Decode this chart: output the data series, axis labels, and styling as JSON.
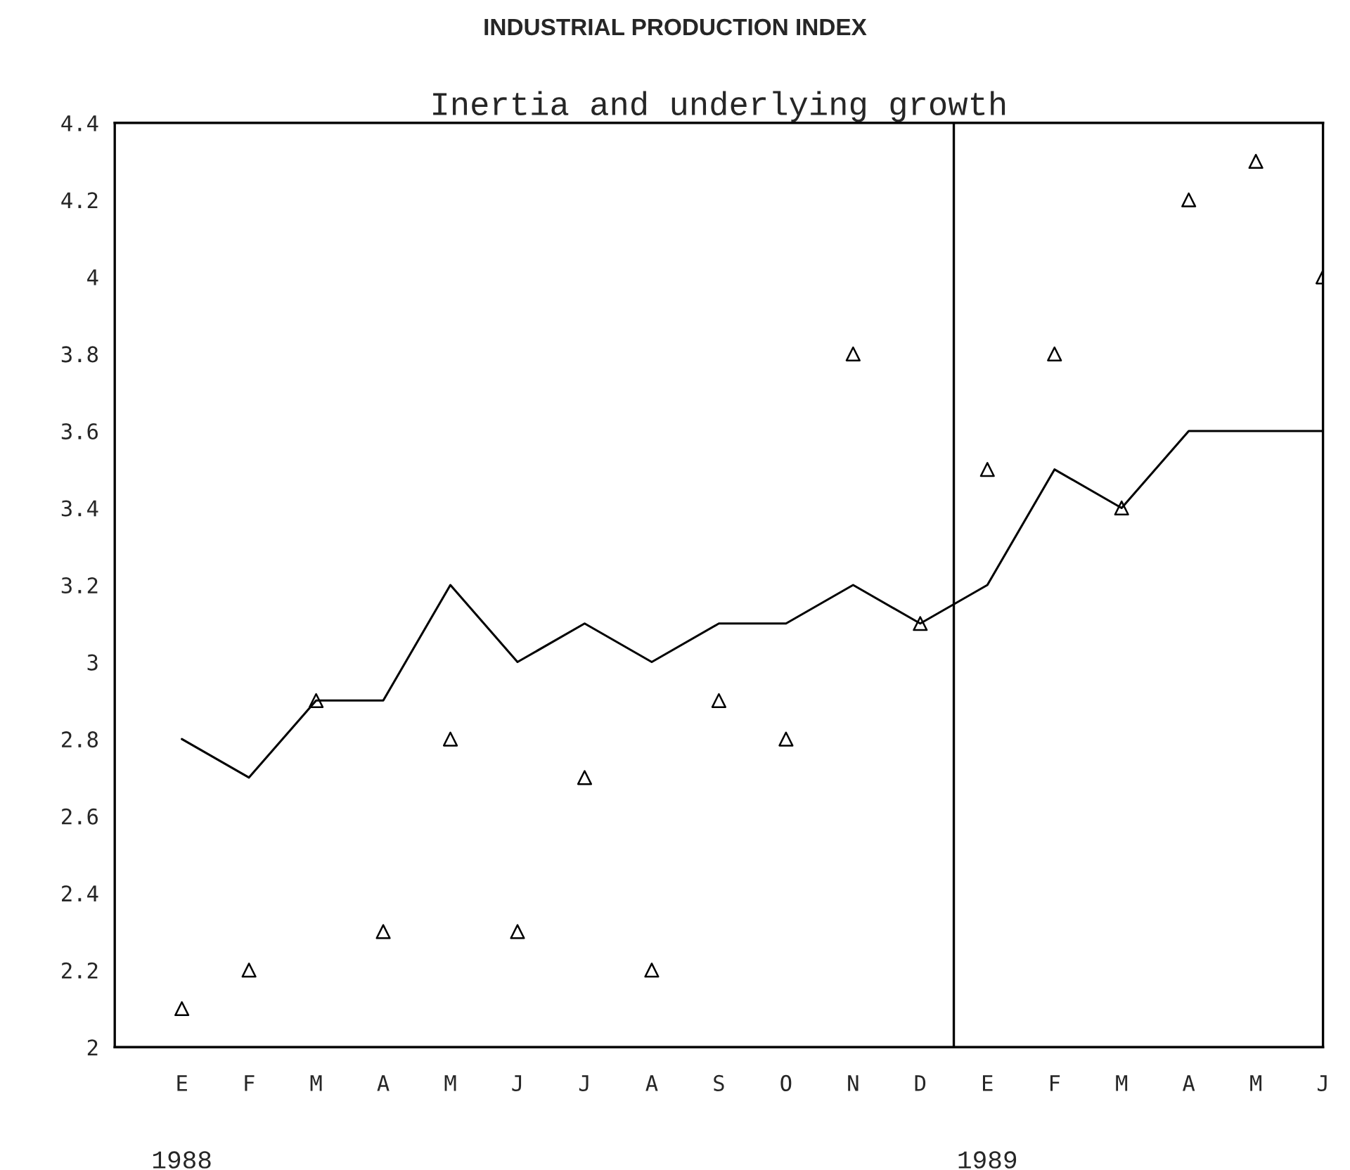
{
  "chart_data": {
    "type": "line",
    "title": "INDUSTRIAL PRODUCTION INDEX",
    "subtitle": "Inertia and underlying growth",
    "categories": [
      "E",
      "F",
      "M",
      "A",
      "M",
      "J",
      "J",
      "A",
      "S",
      "O",
      "N",
      "D",
      "E",
      "F",
      "M",
      "A",
      "M",
      "J"
    ],
    "series": [
      {
        "color": "#000000",
        "marker": "none",
        "values": [
          2.8,
          2.7,
          2.9,
          2.9,
          3.2,
          3.0,
          3.1,
          3.0,
          3.1,
          3.1,
          3.2,
          3.1,
          3.2,
          3.5,
          3.4,
          3.6,
          3.6,
          3.6
        ]
      },
      {
        "type": "scatter",
        "color": "#000000",
        "marker": "triangle",
        "values": [
          2.1,
          2.2,
          2.9,
          2.3,
          2.8,
          2.3,
          2.7,
          2.2,
          2.9,
          2.8,
          3.8,
          3.1,
          3.5,
          3.8,
          3.4,
          4.2,
          4.3,
          4.0
        ]
      }
    ],
    "ylim": [
      2,
      4.4
    ],
    "yticks": [
      2,
      2.2,
      2.4,
      2.6,
      2.8,
      3,
      3.2,
      3.4,
      3.6,
      3.8,
      4,
      4.2,
      4.4
    ],
    "annotations": [
      "1988",
      "1989"
    ],
    "grid": false,
    "legend": false
  }
}
